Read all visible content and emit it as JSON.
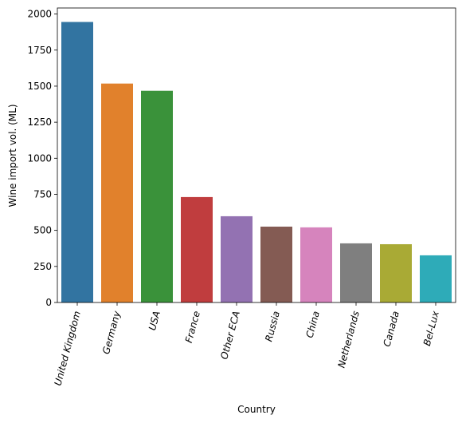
{
  "chart_data": {
    "type": "bar",
    "x_label": "Country",
    "y_label": "Wine import vol. (ML)",
    "categories": [
      "United Kingdom",
      "Germany",
      "USA",
      "France",
      "Other ECA",
      "Russia",
      "China",
      "Netherlands",
      "Canada",
      "Bel-Lux"
    ],
    "values": [
      1945,
      1518,
      1468,
      731,
      598,
      526,
      521,
      410,
      404,
      327
    ],
    "colors": [
      "#3274a1",
      "#e1812c",
      "#3a923a",
      "#c03d3e",
      "#9372b2",
      "#845b53",
      "#d684bd",
      "#7f7f7f",
      "#a9aa35",
      "#2eabb8"
    ],
    "ylim": [
      0,
      2042
    ],
    "yticks": [
      0,
      250,
      500,
      750,
      1000,
      1250,
      1500,
      1750,
      2000
    ]
  }
}
